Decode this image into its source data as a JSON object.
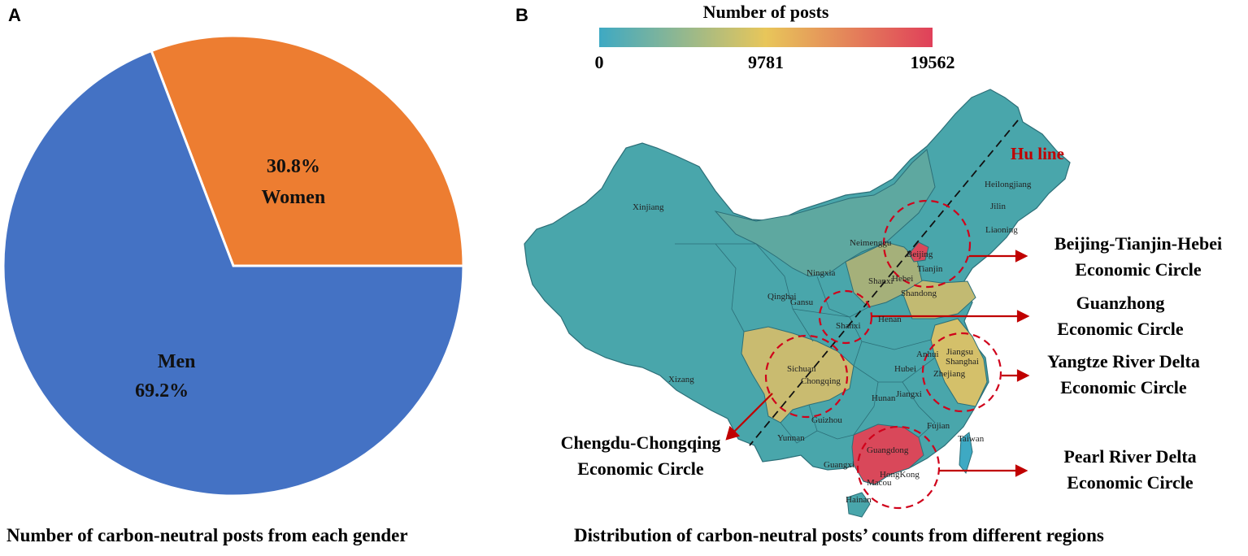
{
  "panels": {
    "a_letter": "A",
    "b_letter": "B",
    "a_caption": "Number of carbon-neutral posts from each gender",
    "b_caption": "Distribution of carbon-neutral posts’ counts from different regions"
  },
  "chart_data": [
    {
      "type": "pie",
      "categories": [
        "Men",
        "Women"
      ],
      "values": [
        69.2,
        30.8
      ],
      "labels": [
        "69.2%",
        "30.8%"
      ],
      "colors": [
        "#4472c4",
        "#ed7d31"
      ],
      "title": "Number of carbon-neutral posts from each gender"
    },
    {
      "type": "heatmap",
      "title": "Distribution of carbon-neutral posts’ counts from different regions",
      "colorbar": {
        "label": "Number of posts",
        "ticks": [
          "0",
          "9781",
          "19562"
        ],
        "range": [
          0,
          19562
        ],
        "colors": [
          "#3ea9c3",
          "#e8c65a",
          "#e0405a"
        ]
      },
      "line": {
        "label": "Hu line",
        "color": "#c00000"
      },
      "circles": [
        {
          "label_line1": "Beijing-Tianjin-Hebei",
          "label_line2": "Economic Circle"
        },
        {
          "label_line1": "Guanzhong",
          "label_line2": "Economic Circle"
        },
        {
          "label_line1": "Yangtze River Delta",
          "label_line2": "Economic Circle"
        },
        {
          "label_line1": "Chengdu-Chongqing",
          "label_line2": "Economic Circle"
        },
        {
          "label_line1": "Pearl River Delta",
          "label_line2": "Economic Circle"
        }
      ],
      "provinces": [
        "Xinjiang",
        "Xizang",
        "Qinghai",
        "Gansu",
        "Ningxia",
        "Neimenggu",
        "Heilongjiang",
        "Jilin",
        "Liaoning",
        "Beijing",
        "Tianjin",
        "Hebei",
        "Shanxi",
        "Shandong",
        "Shanxi",
        "Henan",
        "Sichuan",
        "Chongqing",
        "Hubei",
        "Anhui",
        "Jiangsu",
        "Shanghai",
        "Zhejiang",
        "Hunan",
        "Jiangxi",
        "Guizhou",
        "Yunnan",
        "Guangxi",
        "Guangdong",
        "Fujian",
        "Taiwan",
        "HongKong",
        "Macou",
        "Hainan"
      ]
    }
  ]
}
